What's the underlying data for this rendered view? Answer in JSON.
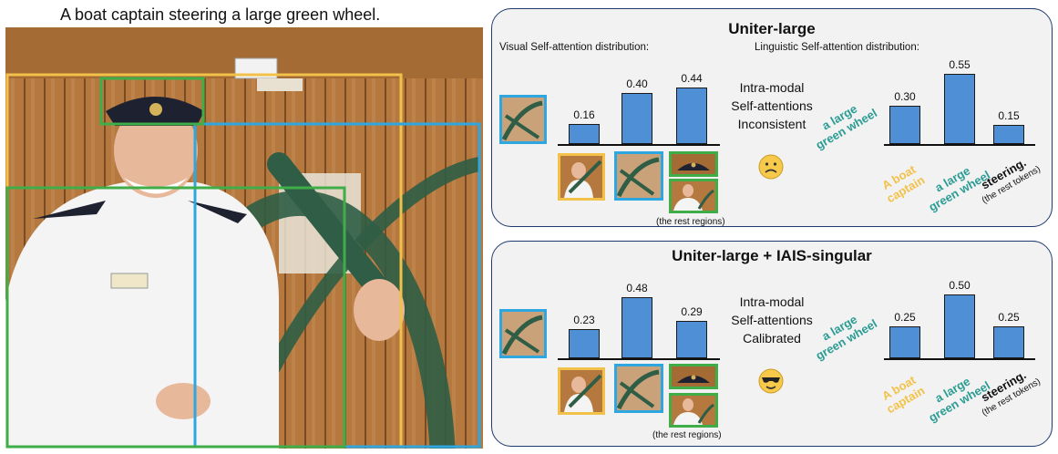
{
  "caption": "A boat captain steering a large green wheel.",
  "colors": {
    "yellow": "#f2c14a",
    "green": "#3fae49",
    "blue": "#2ea7e0",
    "teal": "#2a9c93",
    "bar": "#4f8fd6"
  },
  "panels": [
    {
      "title": "Uniter-large",
      "visual_label": "Visual Self-attention distribution:",
      "linguistic_label": "Linguistic Self-attention distribution:",
      "status": [
        "Intra-modal",
        "Self-attentions",
        "Inconsistent"
      ],
      "emoji": "frown-face-icon",
      "visual_values": [
        "0.16",
        "0.40",
        "0.44"
      ],
      "linguistic_values": [
        "0.30",
        "0.55",
        "0.15"
      ],
      "query_phrase": [
        "a large",
        "green wheel"
      ],
      "token_labels": [
        [
          "A boat",
          "captain"
        ],
        [
          "a large",
          "green wheel"
        ],
        [
          "steering."
        ]
      ],
      "rest_tokens": "(the rest tokens)",
      "rest_regions": "(the rest regions)"
    },
    {
      "title": "Uniter-large + IAIS-singular",
      "visual_label": "",
      "linguistic_label": "",
      "status": [
        "Intra-modal",
        "Self-attentions",
        "Calibrated"
      ],
      "emoji": "sunglasses-face-icon",
      "visual_values": [
        "0.23",
        "0.48",
        "0.29"
      ],
      "linguistic_values": [
        "0.25",
        "0.50",
        "0.25"
      ],
      "query_phrase": [
        "a large",
        "green wheel"
      ],
      "token_labels": [
        [
          "A boat",
          "captain"
        ],
        [
          "a large",
          "green wheel"
        ],
        [
          "steering."
        ]
      ],
      "rest_tokens": "(the rest tokens)",
      "rest_regions": "(the rest regions)"
    }
  ],
  "chart_data": [
    {
      "type": "bar",
      "title": "Uniter-large",
      "xlabel": "",
      "ylabel": "",
      "series": [
        {
          "name": "Visual Self-attention distribution:",
          "values": [
            0.16,
            0.4,
            0.44
          ]
        },
        {
          "name": "Linguistic Self-attention distribution:",
          "categories": [
            "A boat captain",
            "a large green wheel",
            "steering."
          ],
          "values": [
            0.3,
            0.55,
            0.15
          ]
        }
      ]
    },
    {
      "type": "bar",
      "title": "Uniter-large + IAIS-singular",
      "xlabel": "",
      "ylabel": "",
      "series": [
        {
          "values": [
            0.23,
            0.48,
            0.29
          ]
        },
        {
          "categories": [
            "A boat captain",
            "a large green wheel",
            "steering."
          ],
          "values": [
            0.25,
            0.5,
            0.25
          ]
        }
      ]
    }
  ]
}
